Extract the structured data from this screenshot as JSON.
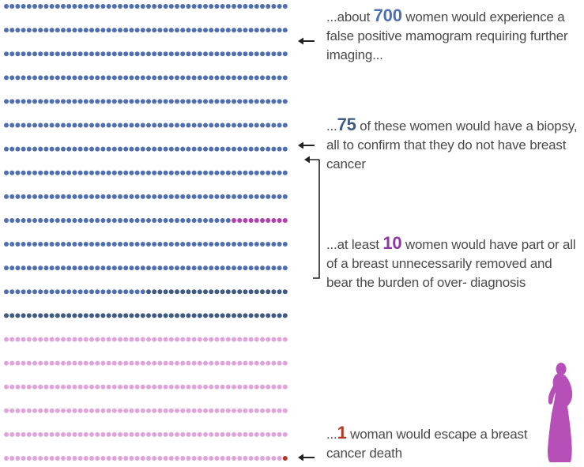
{
  "colors": {
    "false_positive": "#4f6fb1",
    "biopsy": "#3f5b84",
    "unnecessary_removal": "#b13fb1",
    "remaining": "#e0a3dc",
    "escaped_death": "#b13a26",
    "silhouette": "#b64fb7",
    "text": "#4a4a4a",
    "num_700": "#4f6fb1",
    "num_75": "#3f5b84",
    "num_10": "#8a3aa0",
    "num_1": "#b13a26"
  },
  "icons": [
    "left-arrow-icon",
    "bracket-line",
    "woman-silhouette-icon"
  ],
  "grid": {
    "cols": 50,
    "total": 1000,
    "false_positive_count": 700,
    "biopsy_count": 75,
    "unnecessary_removal_count": 10,
    "escaped_death_count": 1
  },
  "annotations": [
    {
      "prefix": "...about ",
      "number": "700",
      "suffix": " women would experience a false positive mamogram requiring further imaging..."
    },
    {
      "prefix": "...",
      "number": "75",
      "suffix": " of these women would have a biopsy, all to confirm that they do not have breast cancer"
    },
    {
      "prefix": "...at least ",
      "number": "10",
      "suffix": " women would have part or all of a breast unnecessarily removed and bear the burden of over- diagnosis"
    },
    {
      "prefix": "...",
      "number": "1",
      "suffix": " woman would escape a breast cancer death"
    }
  ]
}
